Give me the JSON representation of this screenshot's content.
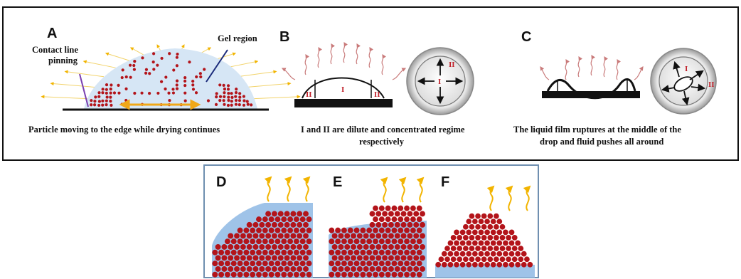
{
  "top_panel": {
    "A": {
      "letter": "A",
      "label_left_1": "Contact line",
      "label_left_2": "pinning",
      "label_right": "Gel region",
      "caption": "Particle moving to the edge while drying continues"
    },
    "B": {
      "letter": "B",
      "region_dilute": "I",
      "region_concentrated": "II",
      "caption_1": "I and II are dilute and concentrated regime",
      "caption_2": "respectively"
    },
    "C": {
      "letter": "C",
      "region_dilute": "I",
      "region_concentrated": "II",
      "caption_1": "The liquid film ruptures at the middle of the",
      "caption_2": "drop and fluid pushes all around"
    }
  },
  "bottom_panel": {
    "D": {
      "letter": "D"
    },
    "E": {
      "letter": "E"
    },
    "F": {
      "letter": "F"
    }
  },
  "colors": {
    "particle": "#b3141a",
    "liquid": "#9fc3e8",
    "liquid_light": "#d6e6f5",
    "vapor_arrow": "#f2b400",
    "evap_arrow": "#c97a7a",
    "substrate": "#111111",
    "flow_arrow": "#f0a818",
    "frame_bottom": "#6f8fb0"
  },
  "icons": [
    "evaporation-arrow-icon",
    "flow-arrow-icon",
    "top-view-drop-icon"
  ]
}
